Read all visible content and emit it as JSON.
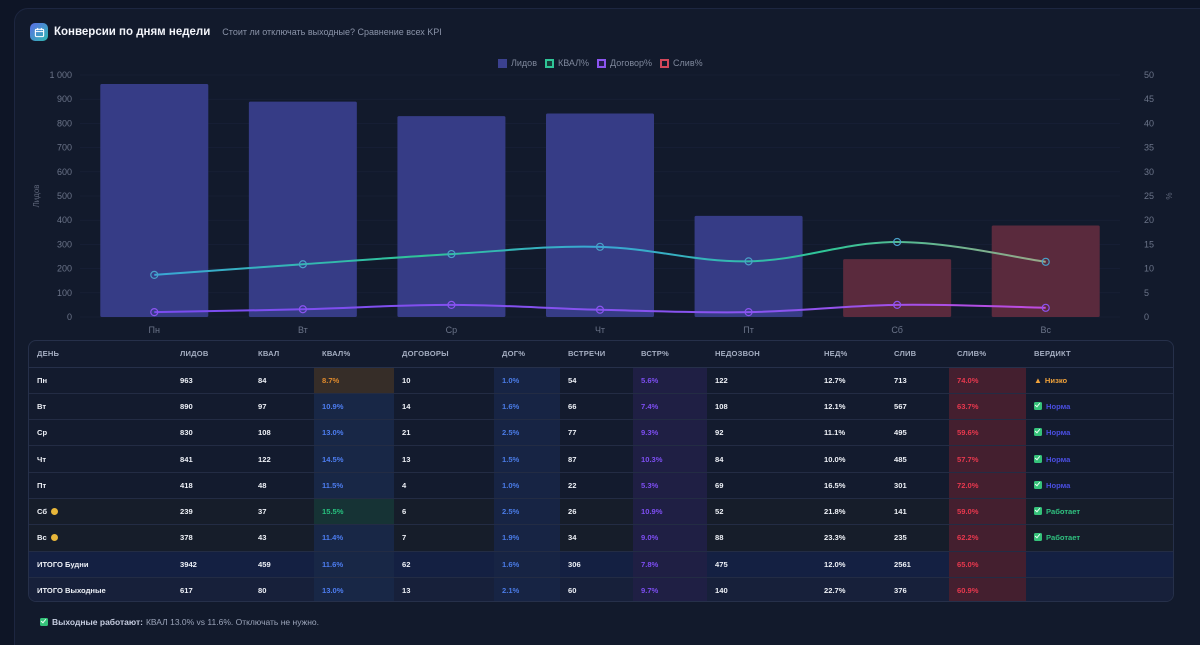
{
  "header": {
    "icon": "calendar-icon",
    "title": "Конверсии по дням недели",
    "subtitle": "Стоит ли отключать выходные? Сравнение всех KPI"
  },
  "legend": [
    {
      "label": "Лидов",
      "color": "#3b418f"
    },
    {
      "label": "КВАЛ%",
      "color": "#2fc597"
    },
    {
      "label": "Договор%",
      "color": "#8b54f0"
    },
    {
      "label": "Слив%",
      "color": "#d2475a"
    }
  ],
  "chart_data": {
    "type": "bar",
    "title": "",
    "categories": [
      "Пн",
      "Вт",
      "Ср",
      "Чт",
      "Пт",
      "Сб",
      "Вс"
    ],
    "series": [
      {
        "name": "Лидов",
        "type": "bar",
        "axis": "left",
        "values": [
          963,
          890,
          830,
          841,
          418,
          239,
          378
        ],
        "colors": [
          "#363c86",
          "#363c86",
          "#363c86",
          "#363c86",
          "#363c86",
          "#5a2a3d",
          "#5a2a3d"
        ]
      },
      {
        "name": "КВАЛ%",
        "type": "line",
        "axis": "right",
        "values": [
          8.7,
          10.9,
          13.0,
          14.5,
          11.5,
          15.5,
          11.4
        ]
      },
      {
        "name": "Договор%",
        "type": "line",
        "axis": "right",
        "values": [
          1.0,
          1.6,
          2.5,
          1.5,
          1.0,
          2.5,
          1.9
        ]
      },
      {
        "name": "Слив%",
        "type": "line",
        "axis": "right",
        "hidden": true,
        "values": [
          74.0,
          63.7,
          59.6,
          57.7,
          72.0,
          59.0,
          62.2
        ]
      }
    ],
    "ylabel": "Лидов",
    "y2label": "%",
    "ylim": [
      0,
      1000
    ],
    "y2lim": [
      0,
      50
    ],
    "yticks": [
      "0",
      "100",
      "200",
      "300",
      "400",
      "500",
      "600",
      "700",
      "800",
      "900",
      "1 000"
    ],
    "y2ticks": [
      "0",
      "5",
      "10",
      "15",
      "20",
      "25",
      "30",
      "35",
      "40",
      "45",
      "50"
    ],
    "legend_position": "top-center",
    "grid": true
  },
  "table": {
    "columns": [
      "ДЕНЬ",
      "ЛИДОВ",
      "КВАЛ",
      "КВАЛ%",
      "ДОГОВОРЫ",
      "ДОГ%",
      "ВСТРЕЧИ",
      "ВСТР%",
      "НЕДОЗВОН",
      "НЕД%",
      "СЛИВ",
      "СЛИВ%",
      "ВЕРДИКТ"
    ],
    "rows": [
      {
        "day": "Пн",
        "leads": "963",
        "kval": "84",
        "kval_pct": "8.7%",
        "contracts": "10",
        "dog_pct": "1.0%",
        "meetings": "54",
        "meet_pct": "5.6%",
        "nodial": "122",
        "ned_pct": "12.7%",
        "sliv": "713",
        "sliv_pct": "74.0%",
        "verdict": "Низко",
        "verdict_type": "low",
        "weekend": false,
        "kval_state": "warn"
      },
      {
        "day": "Вт",
        "leads": "890",
        "kval": "97",
        "kval_pct": "10.9%",
        "contracts": "14",
        "dog_pct": "1.6%",
        "meetings": "66",
        "meet_pct": "7.4%",
        "nodial": "108",
        "ned_pct": "12.1%",
        "sliv": "567",
        "sliv_pct": "63.7%",
        "verdict": "Норма",
        "verdict_type": "norm",
        "weekend": false,
        "kval_state": ""
      },
      {
        "day": "Ср",
        "leads": "830",
        "kval": "108",
        "kval_pct": "13.0%",
        "contracts": "21",
        "dog_pct": "2.5%",
        "meetings": "77",
        "meet_pct": "9.3%",
        "nodial": "92",
        "ned_pct": "11.1%",
        "sliv": "495",
        "sliv_pct": "59.6%",
        "verdict": "Норма",
        "verdict_type": "norm",
        "weekend": false,
        "kval_state": ""
      },
      {
        "day": "Чт",
        "leads": "841",
        "kval": "122",
        "kval_pct": "14.5%",
        "contracts": "13",
        "dog_pct": "1.5%",
        "meetings": "87",
        "meet_pct": "10.3%",
        "nodial": "84",
        "ned_pct": "10.0%",
        "sliv": "485",
        "sliv_pct": "57.7%",
        "verdict": "Норма",
        "verdict_type": "norm",
        "weekend": false,
        "kval_state": ""
      },
      {
        "day": "Пт",
        "leads": "418",
        "kval": "48",
        "kval_pct": "11.5%",
        "contracts": "4",
        "dog_pct": "1.0%",
        "meetings": "22",
        "meet_pct": "5.3%",
        "nodial": "69",
        "ned_pct": "16.5%",
        "sliv": "301",
        "sliv_pct": "72.0%",
        "verdict": "Норма",
        "verdict_type": "norm",
        "weekend": false,
        "kval_state": ""
      },
      {
        "day": "Сб",
        "leads": "239",
        "kval": "37",
        "kval_pct": "15.5%",
        "contracts": "6",
        "dog_pct": "2.5%",
        "meetings": "26",
        "meet_pct": "10.9%",
        "nodial": "52",
        "ned_pct": "21.8%",
        "sliv": "141",
        "sliv_pct": "59.0%",
        "verdict": "Работает",
        "verdict_type": "work",
        "weekend": true,
        "kval_state": "good"
      },
      {
        "day": "Вс",
        "leads": "378",
        "kval": "43",
        "kval_pct": "11.4%",
        "contracts": "7",
        "dog_pct": "1.9%",
        "meetings": "34",
        "meet_pct": "9.0%",
        "nodial": "88",
        "ned_pct": "23.3%",
        "sliv": "235",
        "sliv_pct": "62.2%",
        "verdict": "Работает",
        "verdict_type": "work",
        "weekend": true,
        "kval_state": ""
      },
      {
        "day": "ИТОГО Будни",
        "leads": "3942",
        "kval": "459",
        "kval_pct": "11.6%",
        "contracts": "62",
        "dog_pct": "1.6%",
        "meetings": "306",
        "meet_pct": "7.8%",
        "nodial": "475",
        "ned_pct": "12.0%",
        "sliv": "2561",
        "sliv_pct": "65.0%",
        "verdict": "",
        "verdict_type": "",
        "total": 1,
        "kval_state": ""
      },
      {
        "day": "ИТОГО Выходные",
        "leads": "617",
        "kval": "80",
        "kval_pct": "13.0%",
        "contracts": "13",
        "dog_pct": "2.1%",
        "meetings": "60",
        "meet_pct": "9.7%",
        "nodial": "140",
        "ned_pct": "22.7%",
        "sliv": "376",
        "sliv_pct": "60.9%",
        "verdict": "",
        "verdict_type": "",
        "total": 2,
        "kval_state": ""
      }
    ]
  },
  "footer": {
    "icon": "check-icon",
    "bold": "Выходные работают:",
    "text": "КВАЛ 13.0% vs 11.6%. Отключать не нужно."
  }
}
